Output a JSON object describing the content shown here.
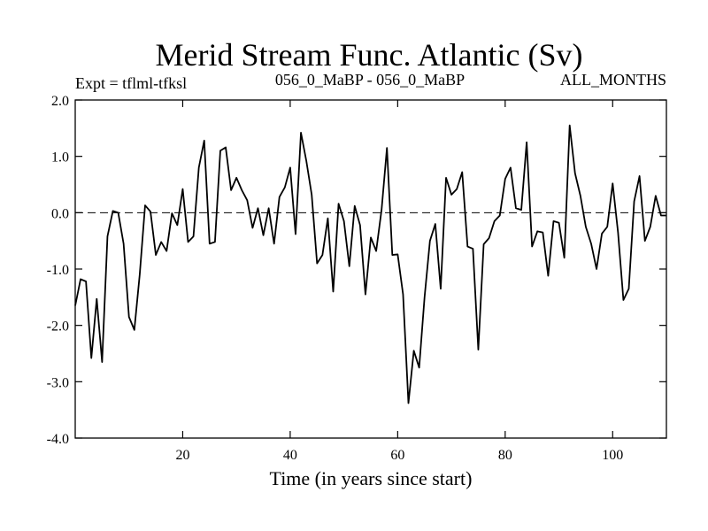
{
  "header": {
    "title": "Merid Stream Func. Atlantic (Sv)",
    "experiment": "Expt = tflml-tfksl",
    "run_label": "056_0_MaBP - 056_0_MaBP",
    "period": "ALL_MONTHS"
  },
  "chart_data": {
    "type": "line",
    "title": "Merid Stream Func. Atlantic (Sv)",
    "xlabel": "Time (in years since start)",
    "ylabel": "",
    "xlim": [
      0,
      110
    ],
    "ylim": [
      -4.0,
      2.0
    ],
    "x_ticks": [
      20,
      40,
      60,
      80,
      100
    ],
    "x_tick_labels": [
      "20",
      "40",
      "60",
      "80",
      "100"
    ],
    "y_ticks": [
      -4.0,
      -3.0,
      -2.0,
      -1.0,
      0.0,
      1.0,
      2.0
    ],
    "y_tick_labels": [
      "-4.0",
      "-3.0",
      "-2.0",
      "-1.0",
      "0.0",
      "1.0",
      "2.0"
    ],
    "reference_line": {
      "y": 0.0,
      "style": "dashed"
    },
    "series": [
      {
        "name": "Merid Stream Func. Atlantic",
        "x": [
          0,
          1,
          2,
          3,
          4,
          5,
          6,
          7,
          8,
          9,
          10,
          11,
          12,
          13,
          14,
          15,
          16,
          17,
          18,
          19,
          20,
          21,
          22,
          23,
          24,
          25,
          26,
          27,
          28,
          29,
          30,
          31,
          32,
          33,
          34,
          35,
          36,
          37,
          38,
          39,
          40,
          41,
          42,
          43,
          44,
          45,
          46,
          47,
          48,
          49,
          50,
          51,
          52,
          53,
          54,
          55,
          56,
          57,
          58,
          59,
          60,
          61,
          62,
          63,
          64,
          65,
          66,
          67,
          68,
          69,
          70,
          71,
          72,
          73,
          74,
          75,
          76,
          77,
          78,
          79,
          80,
          81,
          82,
          83,
          84,
          85,
          86,
          87,
          88,
          89,
          90,
          91,
          92,
          93,
          94,
          95,
          96,
          97,
          98,
          99,
          100,
          101,
          102,
          103,
          104,
          105,
          106,
          107,
          108,
          109,
          110
        ],
        "values": [
          -1.65,
          -1.18,
          -1.22,
          -2.58,
          -1.53,
          -2.65,
          -0.42,
          0.03,
          0.0,
          -0.55,
          -1.85,
          -2.08,
          -1.1,
          0.13,
          0.02,
          -0.75,
          -0.52,
          -0.68,
          -0.01,
          -0.22,
          0.42,
          -0.52,
          -0.42,
          0.8,
          1.28,
          -0.55,
          -0.52,
          1.1,
          1.16,
          0.4,
          0.62,
          0.4,
          0.22,
          -0.27,
          0.08,
          -0.4,
          0.08,
          -0.55,
          0.28,
          0.45,
          0.8,
          -0.38,
          1.42,
          0.92,
          0.32,
          -0.9,
          -0.75,
          -0.1,
          -1.4,
          0.16,
          -0.15,
          -0.95,
          0.12,
          -0.22,
          -1.45,
          -0.44,
          -0.68,
          0.05,
          1.15,
          -0.75,
          -0.74,
          -1.45,
          -3.38,
          -2.45,
          -2.75,
          -1.5,
          -0.5,
          -0.2,
          -1.35,
          0.62,
          0.32,
          0.42,
          0.72,
          -0.6,
          -0.64,
          -2.43,
          -0.56,
          -0.45,
          -0.15,
          -0.05,
          0.6,
          0.8,
          0.08,
          0.05,
          1.25,
          -0.6,
          -0.33,
          -0.35,
          -1.12,
          -0.15,
          -0.18,
          -0.8,
          1.55,
          0.7,
          0.3,
          -0.25,
          -0.55,
          -1.0,
          -0.37,
          -0.25,
          0.52,
          -0.35,
          -1.55,
          -1.35,
          0.2,
          0.65,
          -0.5,
          -0.25,
          0.3,
          -0.05,
          -0.05
        ]
      }
    ]
  }
}
